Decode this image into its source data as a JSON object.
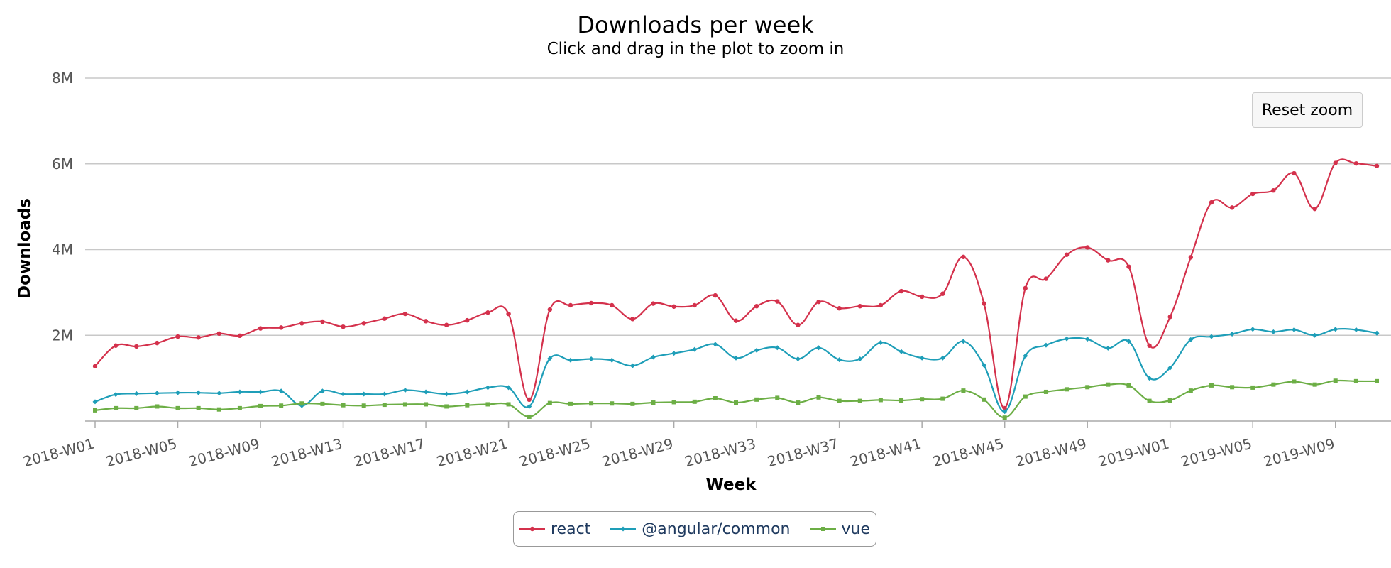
{
  "chart_data": {
    "type": "line",
    "title": "Downloads per week",
    "subtitle": "Click and drag in the plot to zoom in",
    "xlabel": "Week",
    "ylabel": "Downloads",
    "ylim": [
      0,
      8000000
    ],
    "y_ticks": [
      "2M",
      "4M",
      "6M",
      "8M"
    ],
    "x_tick_labels": [
      "2018-W01",
      "2018-W05",
      "2018-W09",
      "2018-W13",
      "2018-W17",
      "2018-W21",
      "2018-W25",
      "2018-W29",
      "2018-W33",
      "2018-W37",
      "2018-W41",
      "2018-W45",
      "2018-W49",
      "2019-W01",
      "2019-W05",
      "2019-W09"
    ],
    "grid": true,
    "legend_position": "bottom-center",
    "categories": [
      "2018-W01",
      "2018-W02",
      "2018-W03",
      "2018-W04",
      "2018-W05",
      "2018-W06",
      "2018-W07",
      "2018-W08",
      "2018-W09",
      "2018-W10",
      "2018-W11",
      "2018-W12",
      "2018-W13",
      "2018-W14",
      "2018-W15",
      "2018-W16",
      "2018-W17",
      "2018-W18",
      "2018-W19",
      "2018-W20",
      "2018-W21",
      "2018-W22",
      "2018-W23",
      "2018-W24",
      "2018-W25",
      "2018-W26",
      "2018-W27",
      "2018-W28",
      "2018-W29",
      "2018-W30",
      "2018-W31",
      "2018-W32",
      "2018-W33",
      "2018-W34",
      "2018-W35",
      "2018-W36",
      "2018-W37",
      "2018-W38",
      "2018-W39",
      "2018-W40",
      "2018-W41",
      "2018-W42",
      "2018-W43",
      "2018-W44",
      "2018-W45",
      "2018-W46",
      "2018-W47",
      "2018-W48",
      "2018-W49",
      "2018-W50",
      "2018-W51",
      "2018-W52",
      "2019-W01",
      "2019-W02",
      "2019-W03",
      "2019-W04",
      "2019-W05",
      "2019-W06",
      "2019-W07",
      "2019-W08",
      "2019-W09",
      "2019-W10",
      "2019-W11"
    ],
    "series": [
      {
        "name": "react",
        "color": "#d4314c",
        "marker": "circle",
        "values": [
          1280000,
          1760000,
          1740000,
          1820000,
          1970000,
          1950000,
          2040000,
          1990000,
          2160000,
          2180000,
          2280000,
          2320000,
          2200000,
          2280000,
          2390000,
          2500000,
          2330000,
          2240000,
          2350000,
          2530000,
          2500000,
          500000,
          2600000,
          2700000,
          2750000,
          2700000,
          2380000,
          2740000,
          2670000,
          2700000,
          2930000,
          2340000,
          2680000,
          2790000,
          2240000,
          2780000,
          2630000,
          2680000,
          2700000,
          3030000,
          2900000,
          2970000,
          3830000,
          2740000,
          300000,
          3100000,
          3320000,
          3880000,
          4050000,
          3750000,
          3600000,
          1760000,
          2430000,
          3820000,
          5100000,
          4980000,
          5300000,
          5380000,
          5780000,
          4950000,
          6020000,
          6010000,
          5950000
        ]
      },
      {
        "name": "@angular/common",
        "color": "#1e9eb8",
        "marker": "diamond",
        "values": [
          450000,
          620000,
          640000,
          650000,
          660000,
          660000,
          650000,
          680000,
          680000,
          700000,
          360000,
          700000,
          630000,
          630000,
          630000,
          720000,
          680000,
          630000,
          680000,
          780000,
          780000,
          340000,
          1460000,
          1420000,
          1450000,
          1420000,
          1290000,
          1490000,
          1580000,
          1670000,
          1790000,
          1470000,
          1650000,
          1710000,
          1450000,
          1710000,
          1430000,
          1450000,
          1830000,
          1620000,
          1470000,
          1470000,
          1860000,
          1300000,
          220000,
          1520000,
          1770000,
          1920000,
          1910000,
          1700000,
          1860000,
          1000000,
          1240000,
          1900000,
          1970000,
          2030000,
          2140000,
          2080000,
          2130000,
          2000000,
          2140000,
          2130000,
          2050000
        ]
      },
      {
        "name": "vue",
        "color": "#6cae45",
        "marker": "square",
        "values": [
          250000,
          300000,
          300000,
          340000,
          300000,
          300000,
          270000,
          300000,
          350000,
          360000,
          410000,
          400000,
          370000,
          360000,
          380000,
          390000,
          390000,
          340000,
          370000,
          390000,
          390000,
          100000,
          420000,
          400000,
          410000,
          410000,
          400000,
          430000,
          440000,
          450000,
          530000,
          430000,
          500000,
          540000,
          430000,
          550000,
          470000,
          470000,
          490000,
          480000,
          510000,
          520000,
          710000,
          500000,
          80000,
          570000,
          680000,
          740000,
          790000,
          850000,
          830000,
          470000,
          480000,
          710000,
          830000,
          790000,
          780000,
          850000,
          920000,
          850000,
          940000,
          930000,
          930000
        ]
      }
    ]
  },
  "controls": {
    "reset_zoom_label": "Reset zoom"
  }
}
